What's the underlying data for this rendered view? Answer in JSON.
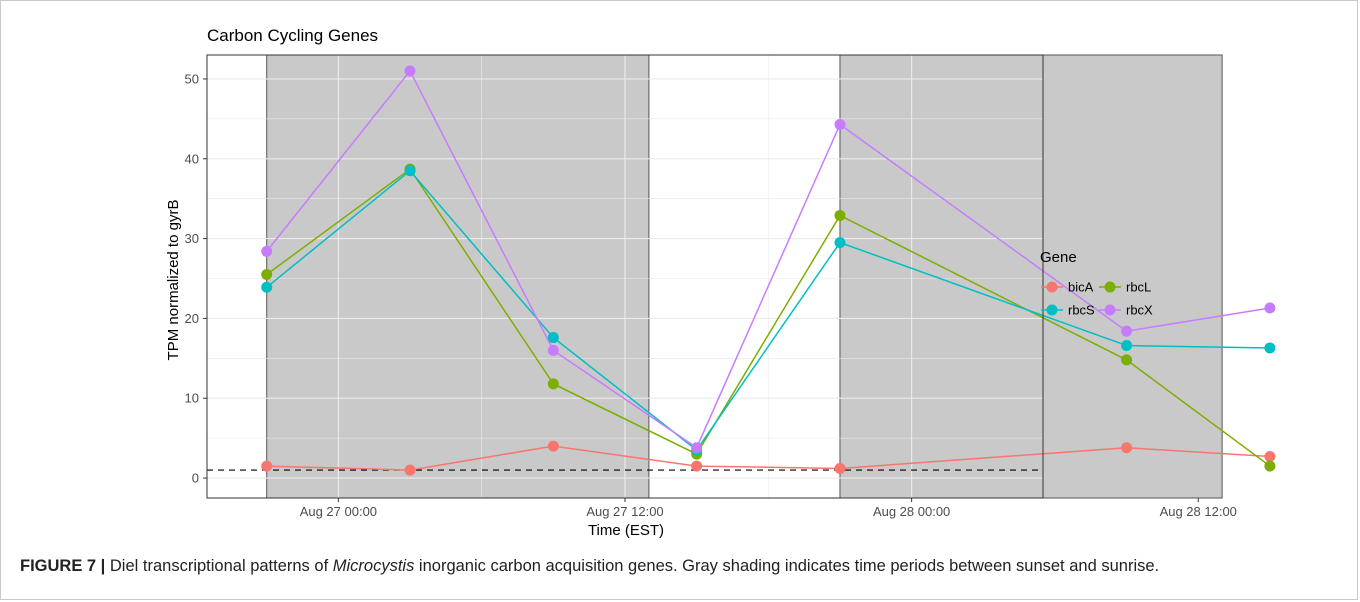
{
  "figure": {
    "label": "FIGURE 7 |",
    "caption_pre": " Diel transcriptional patterns of ",
    "caption_italic": "Microcystis",
    "caption_post": " inorganic carbon acquisition genes. Gray shading indicates time periods between sunset and sunrise."
  },
  "chart_data": {
    "type": "line",
    "title": "Carbon Cycling Genes",
    "xlabel": "Time (EST)",
    "ylabel": "TPM normalized to gyrB",
    "x_units": "hours since Aug 27 00:00",
    "xlim": [
      -5.5,
      29.5
    ],
    "ylim": [
      -2.5,
      53
    ],
    "x_ticks": [
      {
        "value": 0,
        "label": "Aug 27 00:00"
      },
      {
        "value": 12,
        "label": "Aug 27 12:00"
      },
      {
        "value": 24,
        "label": "Aug 28 00:00"
      },
      {
        "value": 36,
        "label": "Aug 28 12:00"
      }
    ],
    "y_ticks": [
      0,
      10,
      20,
      30,
      40,
      50
    ],
    "grid": true,
    "reference_line": {
      "y": 1,
      "style": "dashed"
    },
    "night_shading": [
      [
        -3,
        13
      ],
      [
        21,
        37
      ]
    ],
    "x": [
      -3,
      3,
      9,
      15,
      21,
      33,
      39
    ],
    "series": [
      {
        "name": "bicA",
        "color": "#F8766D",
        "values": [
          1.5,
          1.0,
          4.0,
          1.5,
          1.2,
          3.8,
          2.7
        ]
      },
      {
        "name": "rbcL",
        "color": "#7CAE00",
        "values": [
          25.5,
          38.7,
          11.8,
          3.0,
          32.9,
          14.8,
          1.5
        ]
      },
      {
        "name": "rbcS",
        "color": "#00BFC4",
        "values": [
          23.9,
          38.5,
          17.6,
          3.5,
          29.5,
          16.6,
          16.3
        ]
      },
      {
        "name": "rbcX",
        "color": "#C77CFF",
        "values": [
          28.4,
          51.0,
          16.0,
          3.8,
          44.3,
          18.4,
          21.3
        ]
      }
    ],
    "legend": {
      "title": "Gene",
      "position": "right"
    }
  }
}
